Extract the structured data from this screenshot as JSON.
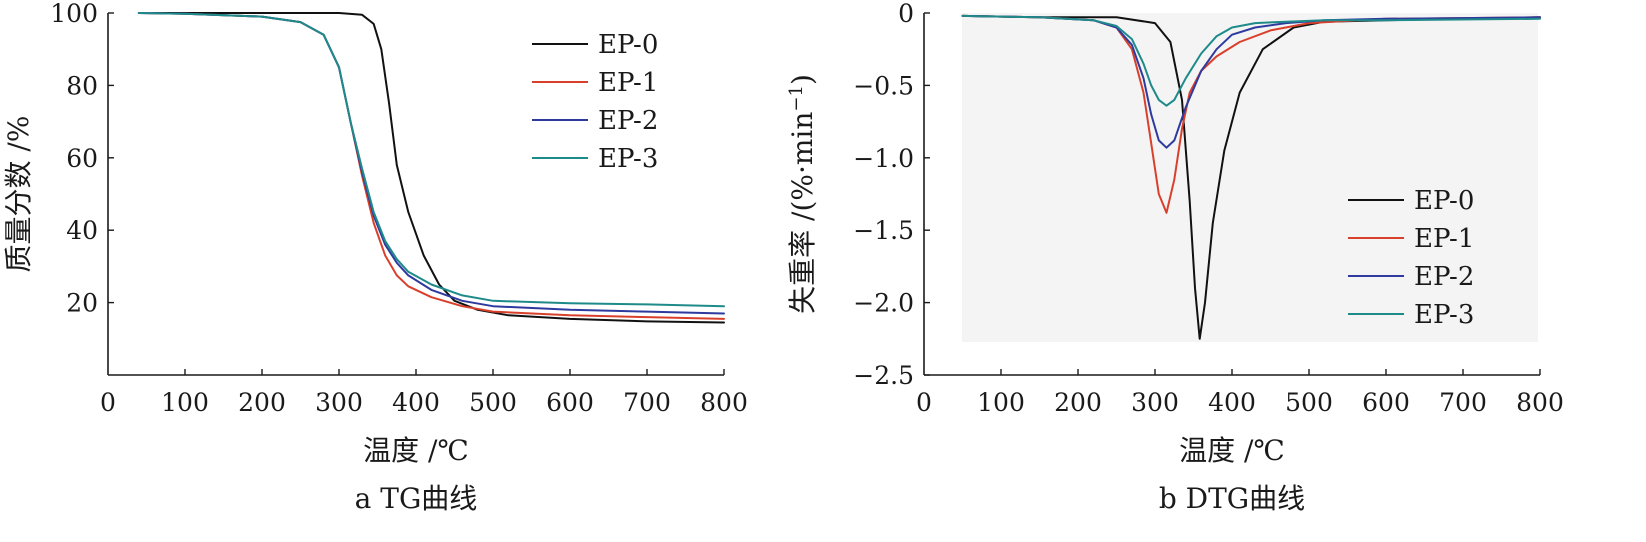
{
  "chart_data": [
    {
      "type": "line",
      "caption": "a TG曲线",
      "xlabel": "温度 /℃",
      "ylabel": "质量分数 /%",
      "xlim": [
        0,
        800
      ],
      "ylim": [
        0,
        100
      ],
      "xticks": [
        "0",
        "100",
        "200",
        "300",
        "400",
        "500",
        "600",
        "700",
        "800"
      ],
      "yticks": [
        "20",
        "40",
        "60",
        "80",
        "100"
      ],
      "ytick_values": [
        20,
        40,
        60,
        80,
        100
      ],
      "grid": false,
      "legend_position": "top-right",
      "series": [
        {
          "name": "EP-0",
          "color": "#111111",
          "x": [
            60,
            200,
            300,
            330,
            345,
            355,
            365,
            375,
            390,
            410,
            430,
            450,
            480,
            520,
            600,
            700,
            800
          ],
          "y": [
            100,
            100,
            100,
            99.5,
            97,
            90,
            75,
            58,
            45,
            33,
            25,
            20.5,
            18,
            16.5,
            15.5,
            14.8,
            14.5
          ]
        },
        {
          "name": "EP-1",
          "color": "#d9402c",
          "x": [
            40,
            100,
            200,
            250,
            280,
            300,
            315,
            330,
            345,
            360,
            375,
            390,
            420,
            460,
            500,
            600,
            700,
            800
          ],
          "y": [
            100,
            99.8,
            99,
            97.5,
            94,
            85,
            70,
            55,
            42,
            33,
            27.5,
            24.5,
            21.5,
            19,
            17.5,
            16.5,
            16,
            15.5
          ]
        },
        {
          "name": "EP-2",
          "color": "#2e3a9e",
          "x": [
            40,
            100,
            200,
            250,
            280,
            300,
            315,
            330,
            345,
            360,
            375,
            390,
            420,
            460,
            500,
            600,
            700,
            800
          ],
          "y": [
            100,
            99.8,
            99,
            97.5,
            94,
            85,
            70,
            56,
            44,
            36,
            31,
            27.5,
            23.5,
            20.5,
            19,
            18,
            17.5,
            17
          ]
        },
        {
          "name": "EP-3",
          "color": "#1f8a8a",
          "x": [
            40,
            100,
            200,
            250,
            280,
            300,
            315,
            330,
            345,
            360,
            375,
            390,
            420,
            460,
            500,
            600,
            700,
            800
          ],
          "y": [
            100,
            99.8,
            99,
            97.5,
            94,
            85,
            70,
            57,
            45,
            37,
            32,
            28.5,
            25,
            22,
            20.5,
            19.8,
            19.5,
            19
          ]
        }
      ]
    },
    {
      "type": "line",
      "caption": "b DTG曲线",
      "xlabel": "温度 /℃",
      "ylabel_main": "失重率 /(%·min",
      "ylabel_sup": "−1",
      "ylabel_tail": ")",
      "xlim": [
        0,
        800
      ],
      "ylim": [
        -2.5,
        0
      ],
      "xticks": [
        "0",
        "100",
        "200",
        "300",
        "400",
        "500",
        "600",
        "700",
        "800"
      ],
      "yticks": [
        "0",
        "−0.5",
        "−1.0",
        "−1.5",
        "−2.0",
        "−2.5"
      ],
      "ytick_values": [
        0,
        -0.5,
        -1.0,
        -1.5,
        -2.0,
        -2.5
      ],
      "grid": false,
      "legend_position": "bottom-right",
      "series": [
        {
          "name": "EP-0",
          "color": "#111111",
          "x": [
            50,
            150,
            250,
            300,
            320,
            335,
            345,
            352,
            358,
            365,
            375,
            390,
            410,
            440,
            480,
            520,
            600,
            700,
            800
          ],
          "y": [
            -0.02,
            -0.03,
            -0.03,
            -0.07,
            -0.2,
            -0.6,
            -1.3,
            -1.9,
            -2.25,
            -2.0,
            -1.45,
            -0.95,
            -0.55,
            -0.25,
            -0.1,
            -0.06,
            -0.05,
            -0.04,
            -0.03
          ]
        },
        {
          "name": "EP-1",
          "color": "#d9402c",
          "x": [
            50,
            150,
            220,
            250,
            270,
            285,
            295,
            305,
            315,
            325,
            335,
            345,
            360,
            380,
            410,
            450,
            500,
            600,
            800
          ],
          "y": [
            -0.02,
            -0.03,
            -0.05,
            -0.1,
            -0.25,
            -0.55,
            -0.9,
            -1.25,
            -1.38,
            -1.15,
            -0.8,
            -0.55,
            -0.4,
            -0.3,
            -0.2,
            -0.12,
            -0.07,
            -0.04,
            -0.03
          ]
        },
        {
          "name": "EP-2",
          "color": "#2e3a9e",
          "x": [
            50,
            150,
            220,
            250,
            270,
            285,
            295,
            305,
            315,
            325,
            340,
            360,
            380,
            400,
            430,
            470,
            520,
            600,
            800
          ],
          "y": [
            -0.02,
            -0.03,
            -0.05,
            -0.1,
            -0.22,
            -0.45,
            -0.7,
            -0.88,
            -0.93,
            -0.88,
            -0.65,
            -0.4,
            -0.25,
            -0.15,
            -0.1,
            -0.07,
            -0.05,
            -0.04,
            -0.03
          ]
        },
        {
          "name": "EP-3",
          "color": "#1f8a8a",
          "x": [
            50,
            150,
            220,
            250,
            270,
            285,
            295,
            305,
            315,
            325,
            340,
            360,
            380,
            400,
            430,
            470,
            520,
            600,
            800
          ],
          "y": [
            -0.02,
            -0.03,
            -0.05,
            -0.09,
            -0.18,
            -0.35,
            -0.5,
            -0.6,
            -0.64,
            -0.6,
            -0.45,
            -0.28,
            -0.16,
            -0.1,
            -0.07,
            -0.06,
            -0.05,
            -0.05,
            -0.04
          ]
        }
      ]
    }
  ]
}
